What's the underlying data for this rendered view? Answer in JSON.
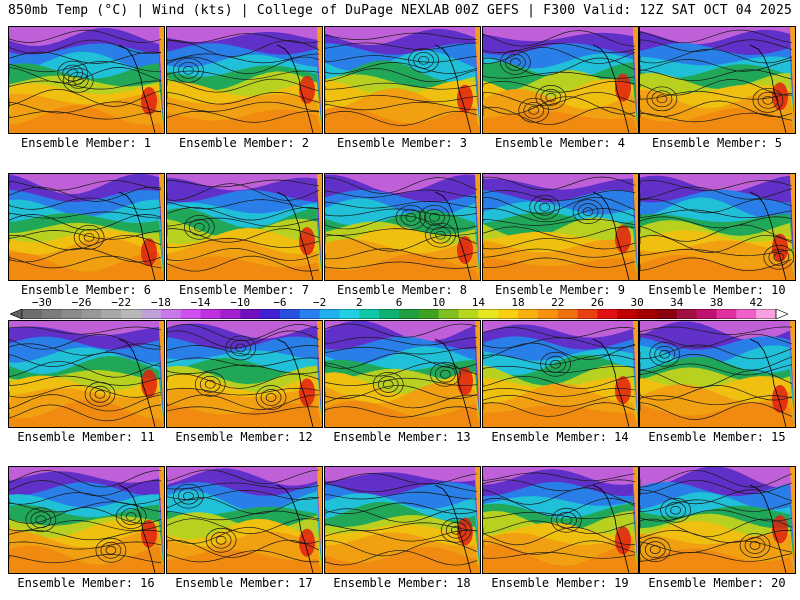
{
  "header": {
    "left": "850mb Temp (°C) | Wind (kts) | College of DuPage NEXLAB",
    "right": "00Z GEFS | F300 Valid: 12Z SAT OCT 04 2025"
  },
  "member_caption_prefix": "Ensemble Member: ",
  "members": [
    1,
    2,
    3,
    4,
    5,
    6,
    7,
    8,
    9,
    10,
    11,
    12,
    13,
    14,
    15,
    16,
    17,
    18,
    19,
    20
  ],
  "colorbar": {
    "labels": [
      "−30",
      "−26",
      "−22",
      "−18",
      "−14",
      "−10",
      "−6",
      "−2",
      "2",
      "6",
      "10",
      "14",
      "18",
      "22",
      "26",
      "30",
      "34",
      "38",
      "42"
    ],
    "label_values": [
      -30,
      -26,
      -22,
      -18,
      -14,
      -10,
      -6,
      -2,
      2,
      6,
      10,
      14,
      18,
      22,
      26,
      30,
      34,
      38,
      42
    ],
    "min": -32,
    "max": 44,
    "step": 2,
    "colors": [
      "#606060",
      "#6e6e6e",
      "#7c7c7c",
      "#8a8a8a",
      "#989898",
      "#a8a8a8",
      "#b8b8b8",
      "#c0a0d8",
      "#c878e8",
      "#d050f0",
      "#c030e0",
      "#a020d0",
      "#7010c0",
      "#4020d0",
      "#2850e0",
      "#2880f0",
      "#20b0f0",
      "#20d0e0",
      "#10c8a8",
      "#10b070",
      "#20a040",
      "#40a020",
      "#80c020",
      "#b8d820",
      "#e8e820",
      "#f8d010",
      "#f8b010",
      "#f89010",
      "#f07010",
      "#e84010",
      "#e01010",
      "#c00000",
      "#a00000",
      "#880010",
      "#a01040",
      "#c01070",
      "#e030a0",
      "#f060c8",
      "#f8a0e0",
      "#ffffff"
    ]
  }
}
